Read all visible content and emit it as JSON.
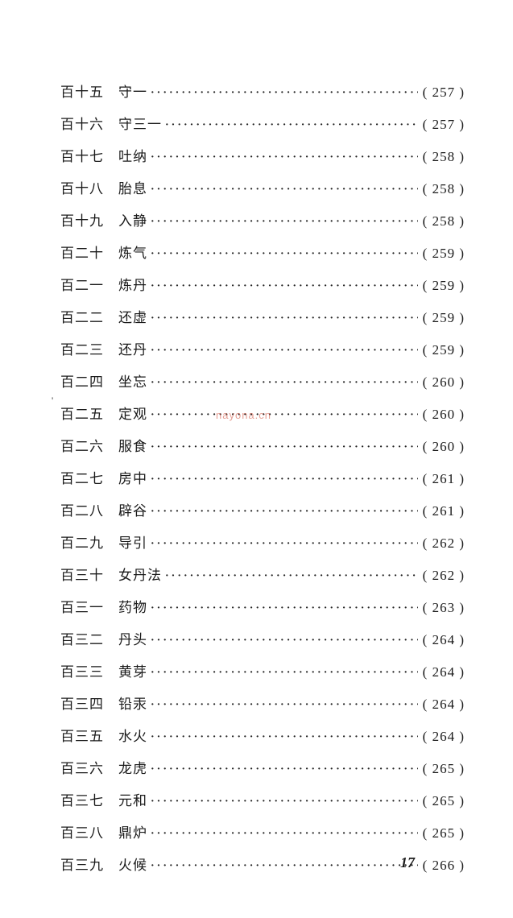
{
  "page_number": "17",
  "watermark": "nayona.cn",
  "colors": {
    "text": "#1a1a1a",
    "background": "#ffffff",
    "watermark": "rgba(210,80,60,0.55)"
  },
  "font": {
    "family": "KaiTi/SimSun serif",
    "row_size_pt": 13,
    "pagenum_size_pt": 14
  },
  "toc": [
    {
      "num": "百十五",
      "title": "守一",
      "page": "( 257 )"
    },
    {
      "num": "百十六",
      "title": "守三一",
      "page": "( 257 )"
    },
    {
      "num": "百十七",
      "title": "吐纳",
      "page": "( 258 )"
    },
    {
      "num": "百十八",
      "title": "胎息",
      "page": "( 258 )"
    },
    {
      "num": "百十九",
      "title": "入静",
      "page": "( 258 )"
    },
    {
      "num": "百二十",
      "title": "炼气",
      "page": "( 259 )"
    },
    {
      "num": "百二一",
      "title": "炼丹",
      "page": "( 259 )"
    },
    {
      "num": "百二二",
      "title": "还虚",
      "page": "( 259 )"
    },
    {
      "num": "百二三",
      "title": "还丹",
      "page": "( 259 )"
    },
    {
      "num": "百二四",
      "title": "坐忘",
      "page": "( 260 )"
    },
    {
      "num": "百二五",
      "title": "定观",
      "page": "( 260 )"
    },
    {
      "num": "百二六",
      "title": "服食",
      "page": "( 260 )"
    },
    {
      "num": "百二七",
      "title": "房中",
      "page": "( 261 )"
    },
    {
      "num": "百二八",
      "title": "辟谷",
      "page": "( 261 )"
    },
    {
      "num": "百二九",
      "title": "导引",
      "page": "( 262 )"
    },
    {
      "num": "百三十",
      "title": "女丹法",
      "page": "( 262 )"
    },
    {
      "num": "百三一",
      "title": "药物",
      "page": "( 263 )"
    },
    {
      "num": "百三二",
      "title": "丹头",
      "page": "( 264 )"
    },
    {
      "num": "百三三",
      "title": "黄芽",
      "page": "( 264 )"
    },
    {
      "num": "百三四",
      "title": "铅汞",
      "page": "( 264 )"
    },
    {
      "num": "百三五",
      "title": "水火",
      "page": "( 264 )"
    },
    {
      "num": "百三六",
      "title": "龙虎",
      "page": "( 265 )"
    },
    {
      "num": "百三七",
      "title": "元和",
      "page": "( 265 )"
    },
    {
      "num": "百三八",
      "title": "鼎炉",
      "page": "( 265 )"
    },
    {
      "num": "百三九",
      "title": "火候",
      "page": "( 266 )"
    }
  ]
}
